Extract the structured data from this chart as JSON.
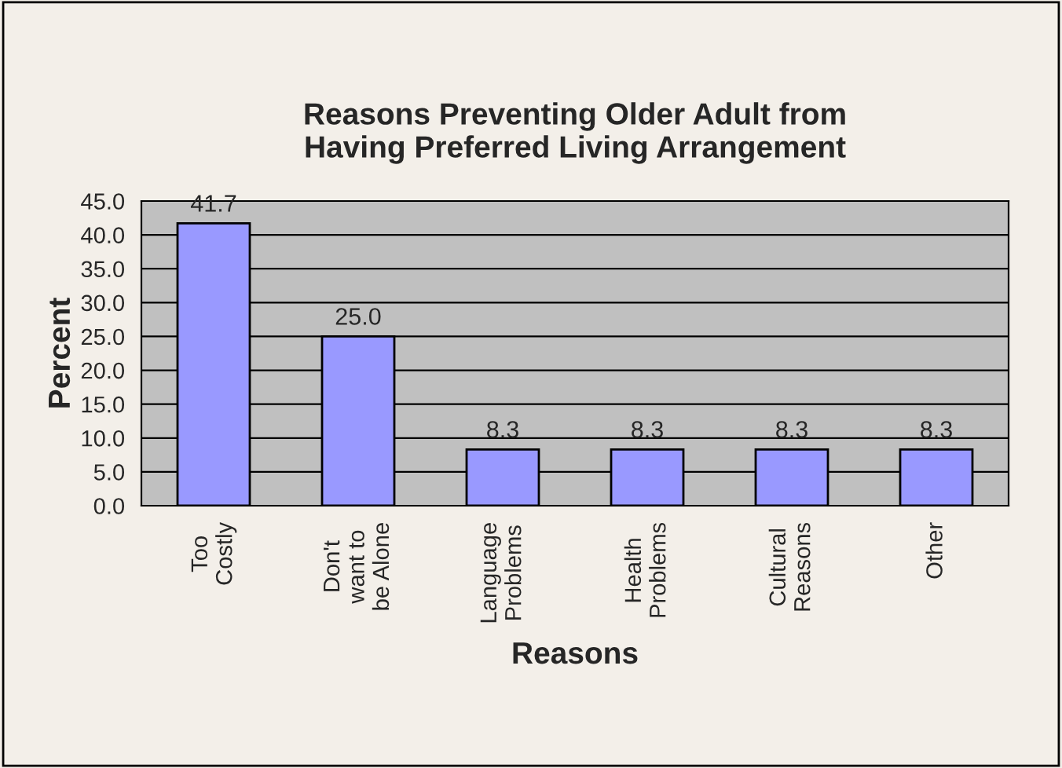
{
  "chart_data": {
    "type": "bar",
    "title": "Reasons Preventing Older Adult from\nHaving Preferred Living Arrangement",
    "xlabel": "Reasons",
    "ylabel": "Percent",
    "categories": [
      "Too\nCostly",
      "Don't\nwant to\nbe Alone",
      "Language\nProblems",
      "Health\nProblems",
      "Cultural\nReasons",
      "Other"
    ],
    "values": [
      41.7,
      25.0,
      8.3,
      8.3,
      8.3,
      8.3
    ],
    "value_labels": [
      "41.7",
      "25.0",
      "8.3",
      "8.3",
      "8.3",
      "8.3"
    ],
    "color": "#9999ff",
    "ylim": [
      0,
      45
    ],
    "yticks": [
      {
        "value": 0,
        "label": "0.0"
      },
      {
        "value": 5,
        "label": "5.0"
      },
      {
        "value": 10,
        "label": "10.0"
      },
      {
        "value": 15,
        "label": "15.0"
      },
      {
        "value": 20,
        "label": "20.0"
      },
      {
        "value": 25,
        "label": "25.0"
      },
      {
        "value": 30,
        "label": "30.0"
      },
      {
        "value": 35,
        "label": "35.0"
      },
      {
        "value": 40,
        "label": "40.0"
      },
      {
        "value": 45,
        "label": "45.0"
      }
    ],
    "grid": "y",
    "legend": false
  }
}
